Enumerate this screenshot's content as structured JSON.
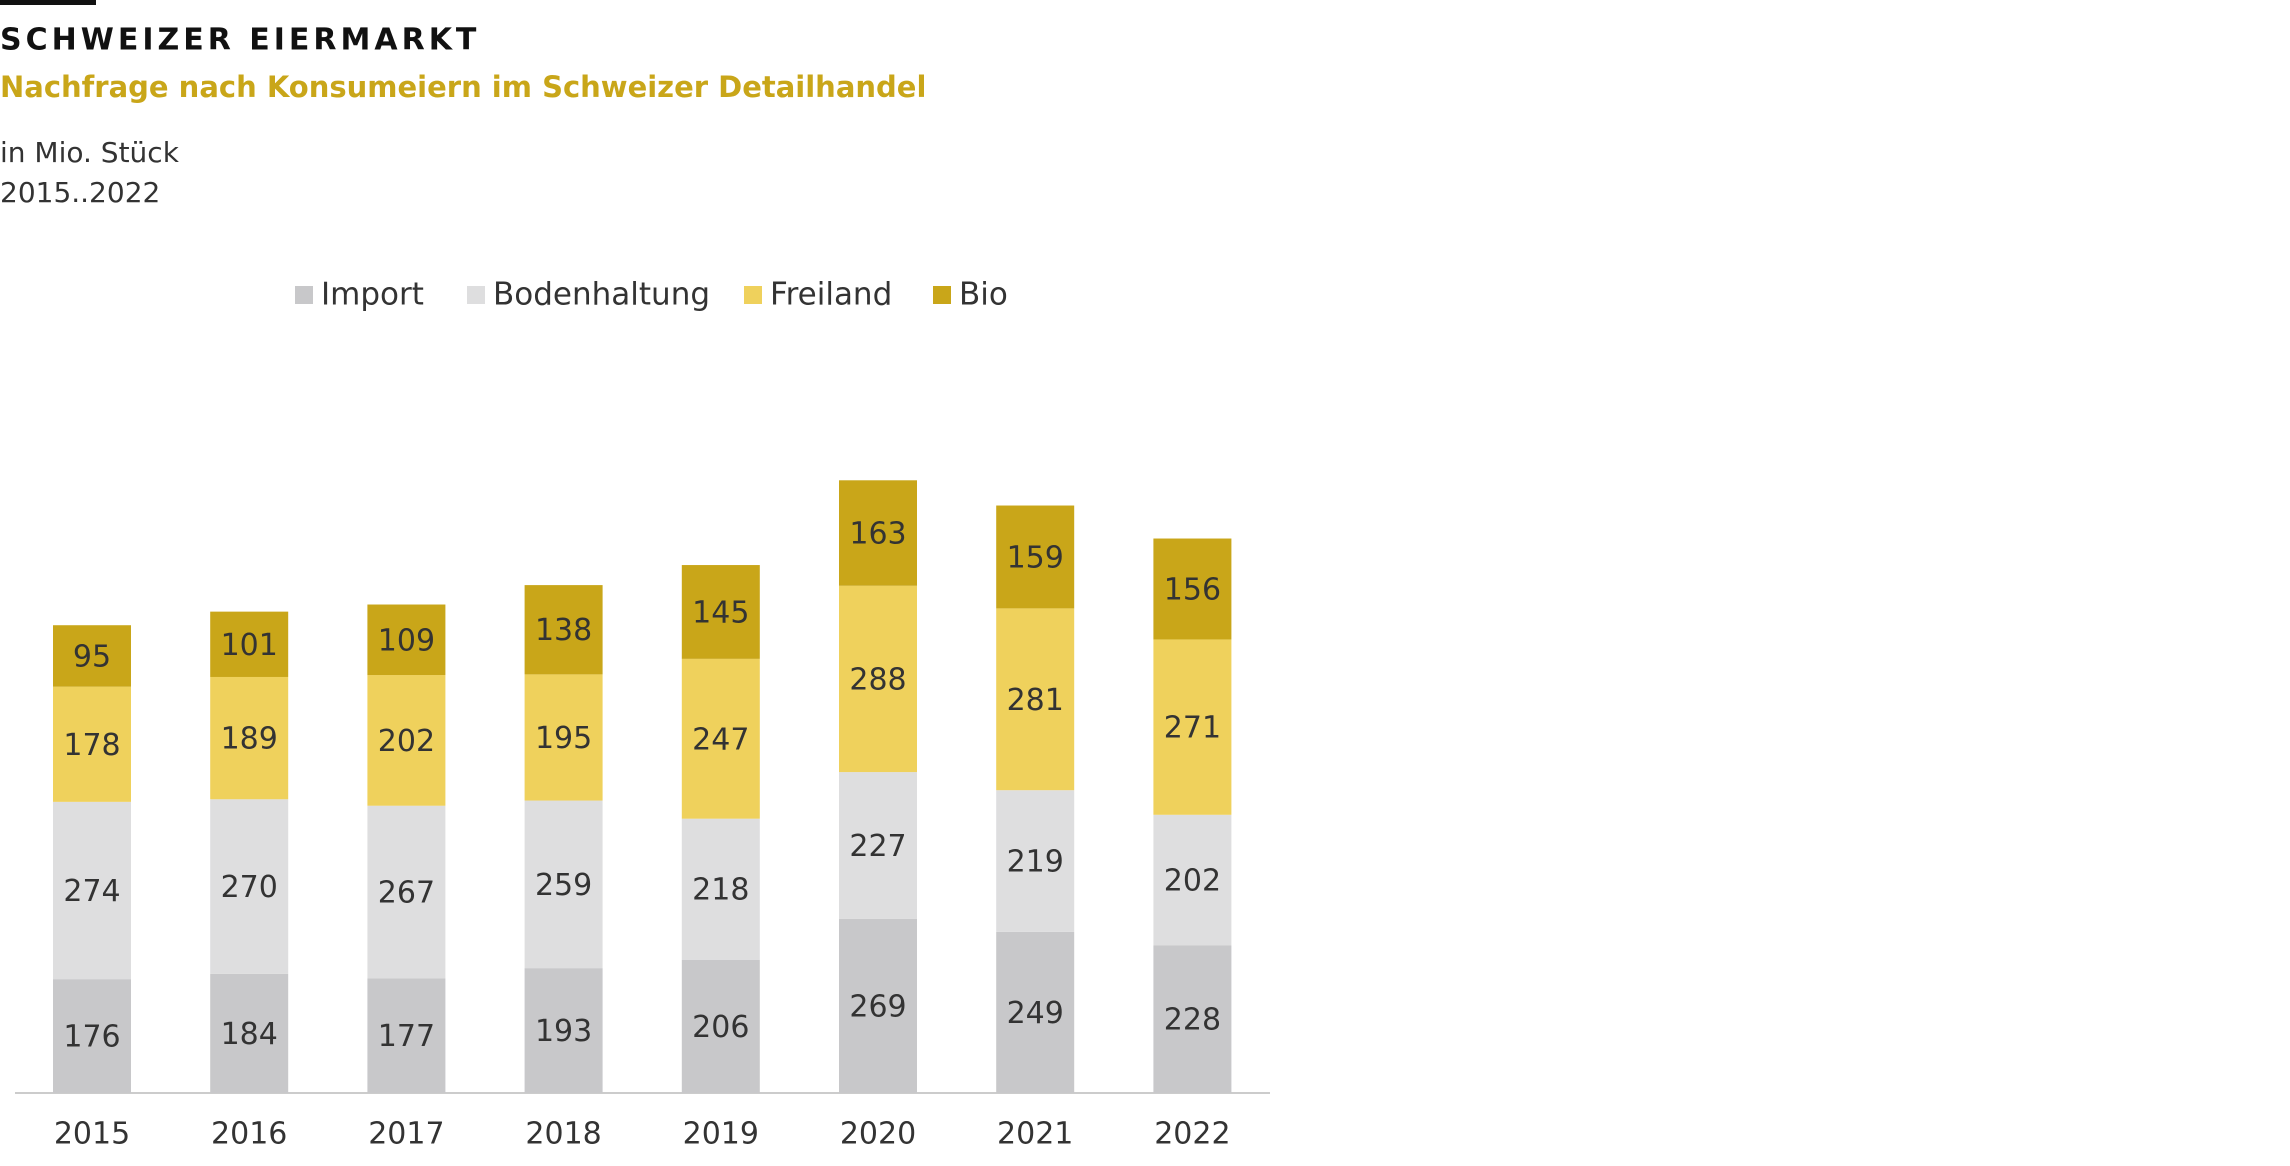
{
  "chart_data": {
    "type": "stacked_bar",
    "title": "SCHWEIZER EIERMARKT",
    "subtitle": "Nachfrage nach Konsumeiern im Schweizer Detailhandel",
    "unit_note": "in Mio. Stück",
    "period_note": "2015..2022",
    "categories": [
      "2015",
      "2016",
      "2017",
      "2018",
      "2019",
      "2020",
      "2021",
      "2022"
    ],
    "series": [
      {
        "name": "Import",
        "color": "#c8c8ca",
        "values": [
          176,
          184,
          177,
          193,
          206,
          269,
          249,
          228
        ]
      },
      {
        "name": "Bodenhaltung",
        "color": "#dededf",
        "values": [
          274,
          270,
          267,
          259,
          218,
          227,
          219,
          202
        ]
      },
      {
        "name": "Freiland",
        "color": "#efd15c",
        "values": [
          178,
          189,
          202,
          195,
          247,
          288,
          281,
          271
        ]
      },
      {
        "name": "Bio",
        "color": "#c9a619",
        "values": [
          95,
          101,
          109,
          138,
          145,
          163,
          159,
          156
        ]
      }
    ]
  }
}
